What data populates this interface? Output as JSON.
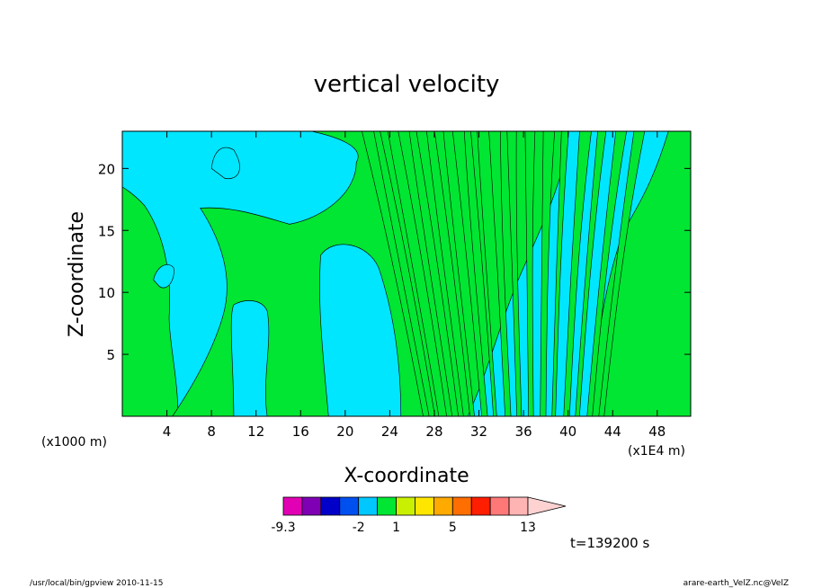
{
  "chart_data": {
    "type": "heatmap",
    "title": "vertical velocity",
    "xlabel": "X-coordinate",
    "ylabel": "Z-coordinate",
    "x_unit_left": "(x1000 m)",
    "x_unit_right": "(x1E4 m)",
    "xlim": [
      0,
      51
    ],
    "ylim": [
      0,
      23
    ],
    "x_ticks": [
      4,
      8,
      12,
      16,
      20,
      24,
      28,
      32,
      36,
      40,
      44,
      48
    ],
    "y_ticks": [
      5,
      10,
      15,
      20
    ],
    "time_label": "t=139200 s",
    "colorbar": {
      "colors": [
        "#e100b4",
        "#7f00b4",
        "#0000c8",
        "#0050f0",
        "#00c8ff",
        "#00e632",
        "#c8f000",
        "#ffe600",
        "#ffaa00",
        "#ff6e00",
        "#ff1e00",
        "#ff7878",
        "#ffb4b4",
        "#ffd2d2"
      ],
      "tick_labels": [
        {
          "label": "-9.3",
          "index": 0
        },
        {
          "label": "-2",
          "index": 4
        },
        {
          "label": "1",
          "index": 6
        },
        {
          "label": "5",
          "index": 9
        },
        {
          "label": "13",
          "index": 13
        }
      ]
    },
    "regions": {
      "positive_color": "#00e632",
      "negative_color": "#00e6ff",
      "contour_color": "#000000"
    }
  },
  "footer": {
    "left": "/usr/local/bin/gpview   2010-11-15",
    "right": "arare-earth_VelZ.nc@VelZ"
  }
}
